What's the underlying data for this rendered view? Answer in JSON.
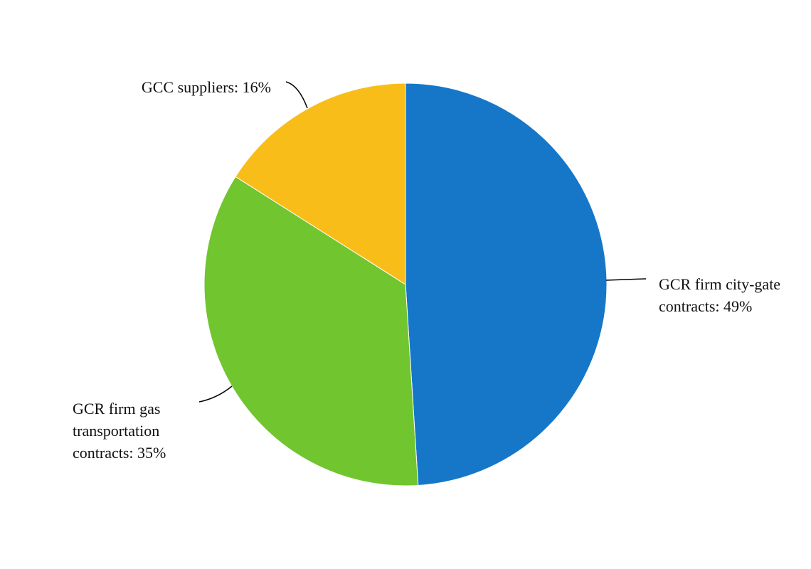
{
  "chart_data": {
    "type": "pie",
    "categories": [
      "GCR firm city-gate contracts: 49%",
      "GCR firm gas transportation contracts: 35%",
      "GCC suppliers: 16%"
    ],
    "values": [
      49,
      35,
      16
    ],
    "colors": [
      "#1677c8",
      "#71c52f",
      "#f9bd19"
    ]
  }
}
